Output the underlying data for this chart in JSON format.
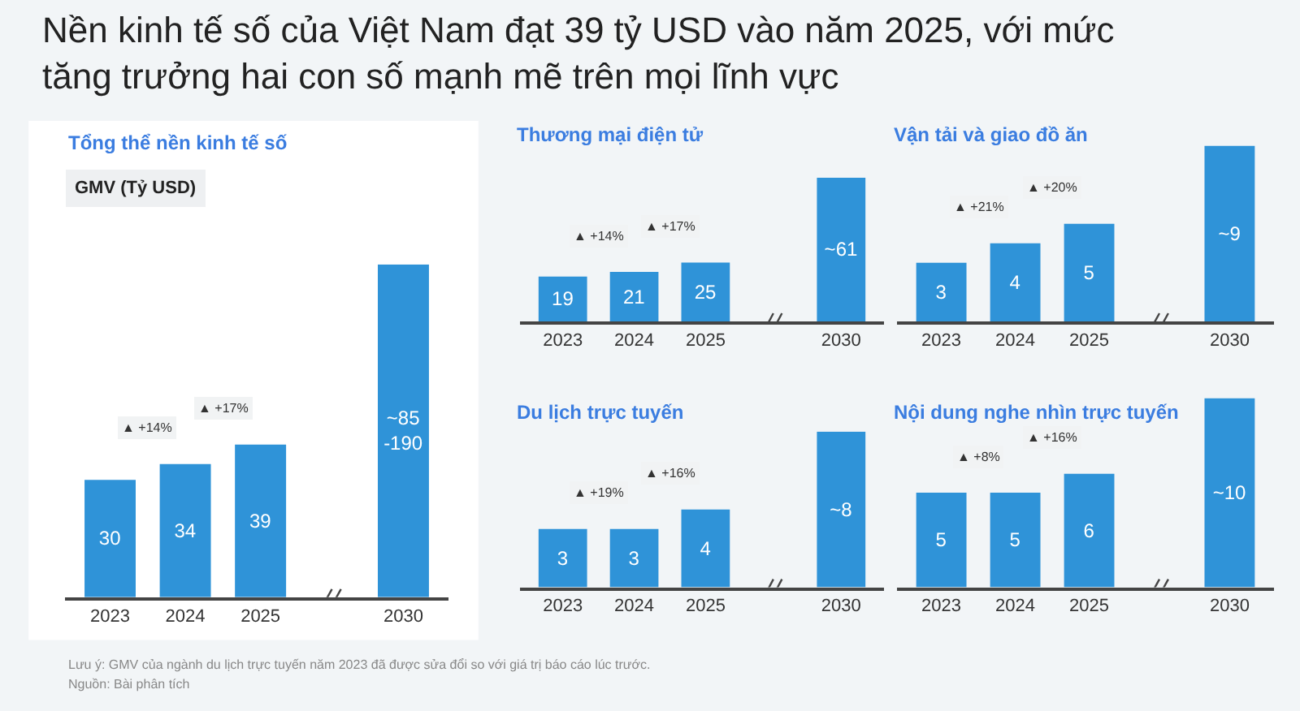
{
  "chart_data": [
    {
      "type": "bar",
      "title": "Nền kinh tế số của Việt Nam đạt 39 tỷ USD vào năm 2025, với mức\ntăng trưởng hai con số mạnh mẽ trên mọi lĩnh vực",
      "subtitle": "Tổng thể nền kinh tế số",
      "ylabel": "GMV (Tỷ USD)",
      "categories": [
        "2023",
        "2024",
        "2025",
        "2030"
      ],
      "values": [
        30,
        34,
        39,
        85
      ],
      "value_labels": [
        "30",
        "34",
        "39",
        "~85\n-190"
      ],
      "color": "#2f93d8",
      "annotations": [
        {
          "text": "▲ +14%",
          "x": "2024",
          "y": 34
        },
        {
          "text": "▲ +17%",
          "x": "2025",
          "y": 39
        },
        "Lưu ý: GMV của ngành du lịch trực tuyến năm 2023 đã được sửa đổi so với giá trị báo cáo lúc trước.",
        "Nguồn: Bài phân tích"
      ]
    },
    {
      "type": "bar",
      "title": "Thương mại điện tử",
      "categories": [
        "2023",
        "2024",
        "2025",
        "2030"
      ],
      "values": [
        19,
        21,
        25,
        61
      ],
      "value_labels": [
        "19",
        "21",
        "25",
        "~61"
      ],
      "color": "#2f93d8",
      "annotations": [
        {
          "text": "▲ +14%",
          "x": "2024",
          "y": 21
        },
        {
          "text": "▲ +17%",
          "x": "2025",
          "y": 25
        }
      ]
    },
    {
      "type": "bar",
      "title": "Vận tải và giao đồ ăn",
      "categories": [
        "2023",
        "2024",
        "2025",
        "2030"
      ],
      "values": [
        3,
        4,
        5,
        9
      ],
      "value_labels": [
        "3",
        "4",
        "5",
        "~9"
      ],
      "color": "#2f93d8",
      "annotations": [
        {
          "text": "▲ +21%",
          "x": "2024",
          "y": 4
        },
        {
          "text": "▲ +20%",
          "x": "2025",
          "y": 5
        }
      ]
    },
    {
      "type": "bar",
      "title": "Du lịch trực tuyến",
      "categories": [
        "2023",
        "2024",
        "2025",
        "2030"
      ],
      "values": [
        3,
        3,
        4,
        8
      ],
      "value_labels": [
        "3",
        "3",
        "4",
        "~8"
      ],
      "color": "#2f93d8",
      "annotations": [
        {
          "text": "▲ +19%",
          "x": "2024",
          "y": 3
        },
        {
          "text": "▲ +16%",
          "x": "2025",
          "y": 4
        }
      ]
    },
    {
      "type": "bar",
      "title": "Nội dung nghe nhìn trực tuyến",
      "categories": [
        "2023",
        "2024",
        "2025",
        "2030"
      ],
      "values": [
        5,
        5,
        6,
        10
      ],
      "value_labels": [
        "5",
        "5",
        "6",
        "~10"
      ],
      "color": "#2f93d8",
      "annotations": [
        {
          "text": "▲ +8%",
          "x": "2024",
          "y": 5
        },
        {
          "text": "▲ +16%",
          "x": "2025",
          "y": 6
        }
      ]
    }
  ]
}
